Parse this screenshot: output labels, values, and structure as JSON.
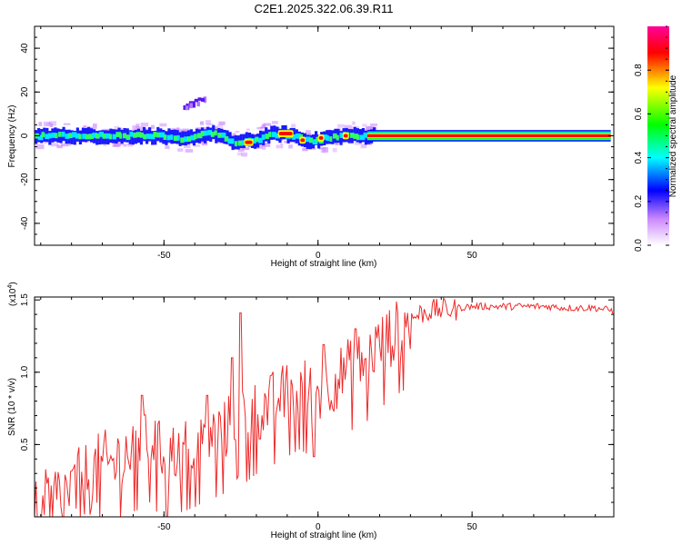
{
  "title": "C2E1.2025.322.06.39.R11",
  "colors": {
    "snr_line": "#ee2a2a",
    "axis": "#000000",
    "background": "#ffffff"
  },
  "chart_data": [
    {
      "type": "heatmap",
      "name": "spectrogram",
      "xlabel": "Height of straight line (km)",
      "ylabel": "Frequency (Hz)",
      "xlim": [
        -92,
        96
      ],
      "ylim": [
        -50,
        50
      ],
      "xticks": [
        -50,
        0,
        50
      ],
      "yticks": [
        -40,
        -20,
        0,
        20,
        40
      ],
      "ytick_labels": [
        "-40",
        "-20",
        "0",
        "20",
        "40"
      ],
      "colorbar": {
        "label": "Normalized spectral amplitude",
        "range": [
          0,
          1
        ],
        "ticks": [
          0.0,
          0.2,
          0.4,
          0.6,
          0.8
        ],
        "tick_labels": [
          "0.0",
          "0.2",
          "0.4",
          "0.6",
          "0.8"
        ],
        "colormap": [
          "#ffffff",
          "#cc88ff",
          "#0000ff",
          "#00ffff",
          "#00ff00",
          "#ffff00",
          "#ff0000",
          "#ff0099"
        ]
      },
      "ridge_track": [
        [
          -92,
          0
        ],
        [
          -80,
          0
        ],
        [
          -70,
          0
        ],
        [
          -60,
          0
        ],
        [
          -52,
          0
        ],
        [
          -48,
          -1
        ],
        [
          -44,
          -2
        ],
        [
          -40,
          0
        ],
        [
          -35,
          1
        ],
        [
          -32,
          0
        ],
        [
          -28,
          -3
        ],
        [
          -20,
          -2
        ],
        [
          -18,
          0
        ],
        [
          -12,
          1
        ],
        [
          -8,
          0
        ],
        [
          -5,
          -2
        ],
        [
          0,
          -2
        ],
        [
          2,
          -1
        ],
        [
          8,
          0
        ],
        [
          16,
          0
        ],
        [
          40,
          0
        ],
        [
          70,
          0
        ],
        [
          95,
          0
        ]
      ],
      "high_intensity_segments": [
        [
          -24,
          -21,
          -3
        ],
        [
          -13,
          -8,
          1
        ],
        [
          -6,
          -4,
          -2
        ],
        [
          0,
          2,
          -1
        ],
        [
          8,
          10,
          0
        ],
        [
          16,
          95,
          0
        ]
      ],
      "upper_feature": {
        "x_start": -44,
        "x_end": -36,
        "y_start": 13,
        "y_end": 18
      }
    },
    {
      "type": "line",
      "name": "snr",
      "xlabel": "Height of straight line (km)",
      "ylabel": "SNR (10 * v/v)",
      "multiplier_label": "(x10",
      "multiplier_exp": "4",
      "multiplier_close": ")",
      "xlim": [
        -92,
        96
      ],
      "ylim": [
        0,
        1.52
      ],
      "xticks": [
        -50,
        0,
        50
      ],
      "yticks": [
        0.5,
        1.0,
        1.5
      ],
      "ytick_labels": [
        "0.5",
        "1.0",
        "1.5"
      ],
      "series": [
        {
          "name": "SNR",
          "x": [
            -92,
            -88,
            -85,
            -80,
            -76,
            -72,
            -68,
            -64,
            -60,
            -56,
            -54,
            -52,
            -48,
            -44,
            -40,
            -36,
            -33,
            -30,
            -27,
            -25,
            -23,
            -22,
            -20,
            -17,
            -14,
            -10,
            -6,
            -2,
            0,
            3,
            6,
            9,
            12,
            15,
            18,
            21,
            24,
            27,
            30,
            33,
            36,
            40,
            45,
            50,
            55,
            60,
            65,
            70,
            75,
            80,
            85,
            90,
            96
          ],
          "y": [
            0.05,
            0.12,
            0.18,
            0.22,
            0.3,
            0.36,
            0.4,
            0.45,
            0.52,
            0.55,
            0.6,
            0.5,
            0.48,
            0.52,
            0.55,
            0.6,
            0.62,
            0.65,
            0.72,
            0.8,
            0.72,
            0.75,
            0.78,
            0.8,
            0.85,
            0.9,
            0.95,
            0.9,
            0.9,
            0.95,
            1.0,
            1.05,
            1.1,
            1.12,
            1.2,
            1.25,
            1.3,
            1.35,
            1.38,
            1.42,
            1.44,
            1.45,
            1.45,
            1.46,
            1.46,
            1.46,
            1.46,
            1.46,
            1.46,
            1.45,
            1.45,
            1.45,
            1.43
          ],
          "spikes": [
            [
              -25,
              1.41
            ],
            [
              -36,
              0.84
            ],
            [
              -57,
              0.84
            ],
            [
              -28,
              1.1
            ],
            [
              2,
              1.19
            ],
            [
              12,
              1.3
            ]
          ]
        }
      ]
    }
  ]
}
